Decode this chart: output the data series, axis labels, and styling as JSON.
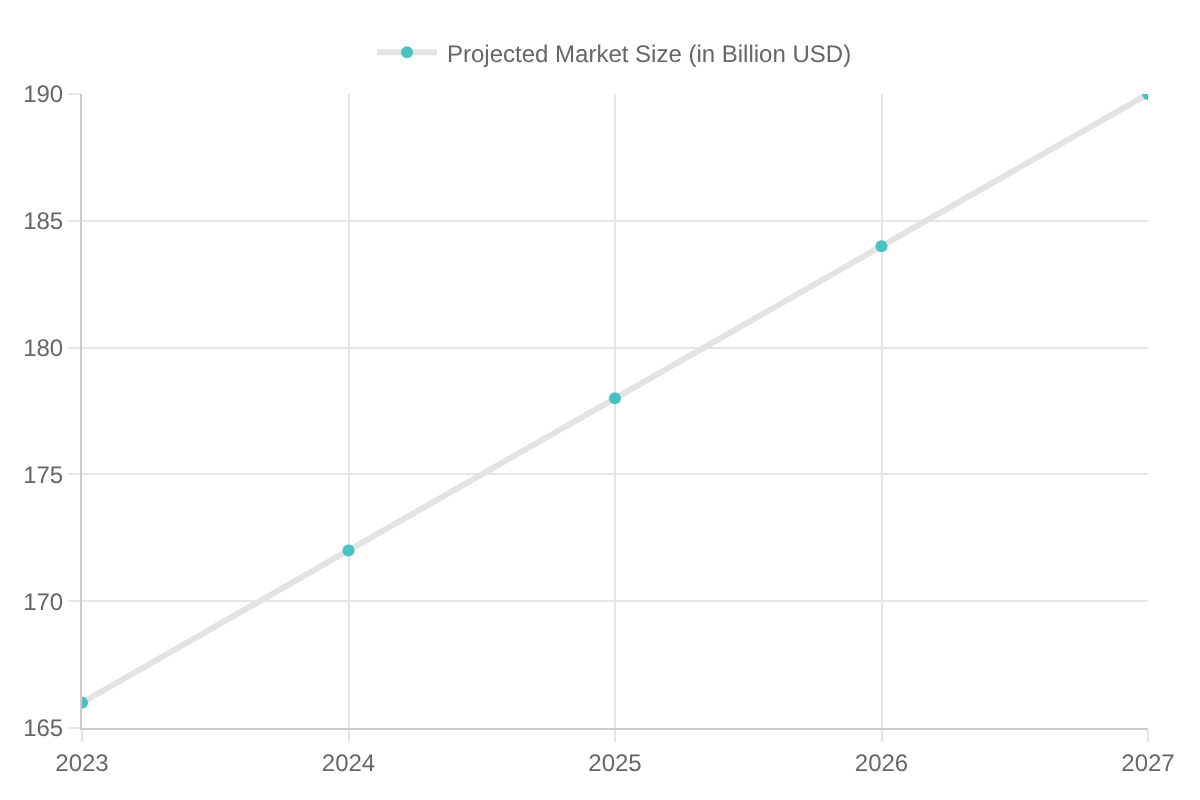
{
  "chart_data": {
    "type": "line",
    "categories": [
      "2023",
      "2024",
      "2025",
      "2026",
      "2027"
    ],
    "series": [
      {
        "name": "Projected Market Size (in Billion USD)",
        "color": "#4bc0c0",
        "values": [
          166,
          172,
          178,
          184,
          190
        ]
      }
    ],
    "ylim": [
      165,
      190
    ],
    "yticks": [
      165,
      170,
      175,
      180,
      185,
      190
    ],
    "grid": true,
    "legend": "top",
    "marker": "circle",
    "line_style": "solid"
  }
}
